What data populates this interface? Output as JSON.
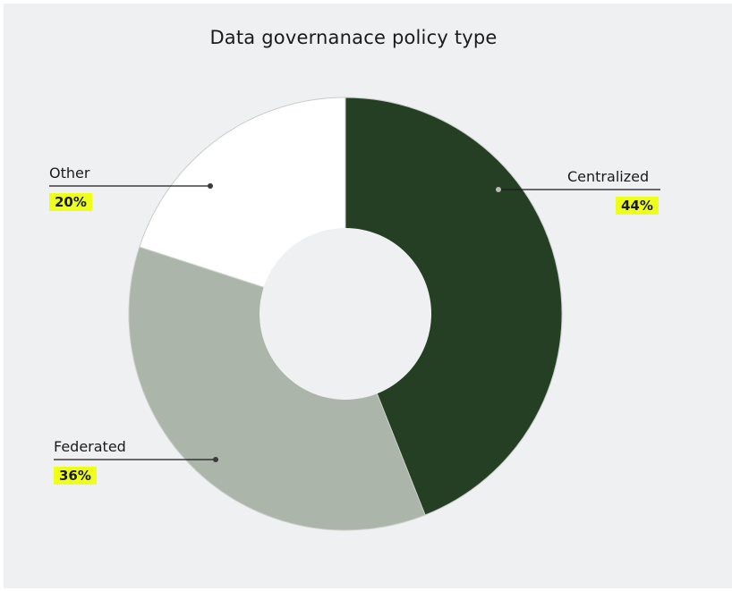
{
  "chart_data": {
    "type": "pie",
    "title": "Data governanace policy type",
    "slices": [
      {
        "label": "Centralized",
        "value": 44,
        "value_label": "44%",
        "color": "#253f24"
      },
      {
        "label": "Federated",
        "value": 36,
        "value_label": "36%",
        "color": "#abb5a9"
      },
      {
        "label": "Other",
        "value": 20,
        "value_label": "20%",
        "color": "#ffffff"
      }
    ],
    "donut": true,
    "legend": "none",
    "label_highlight_color": "#eeff1a"
  }
}
